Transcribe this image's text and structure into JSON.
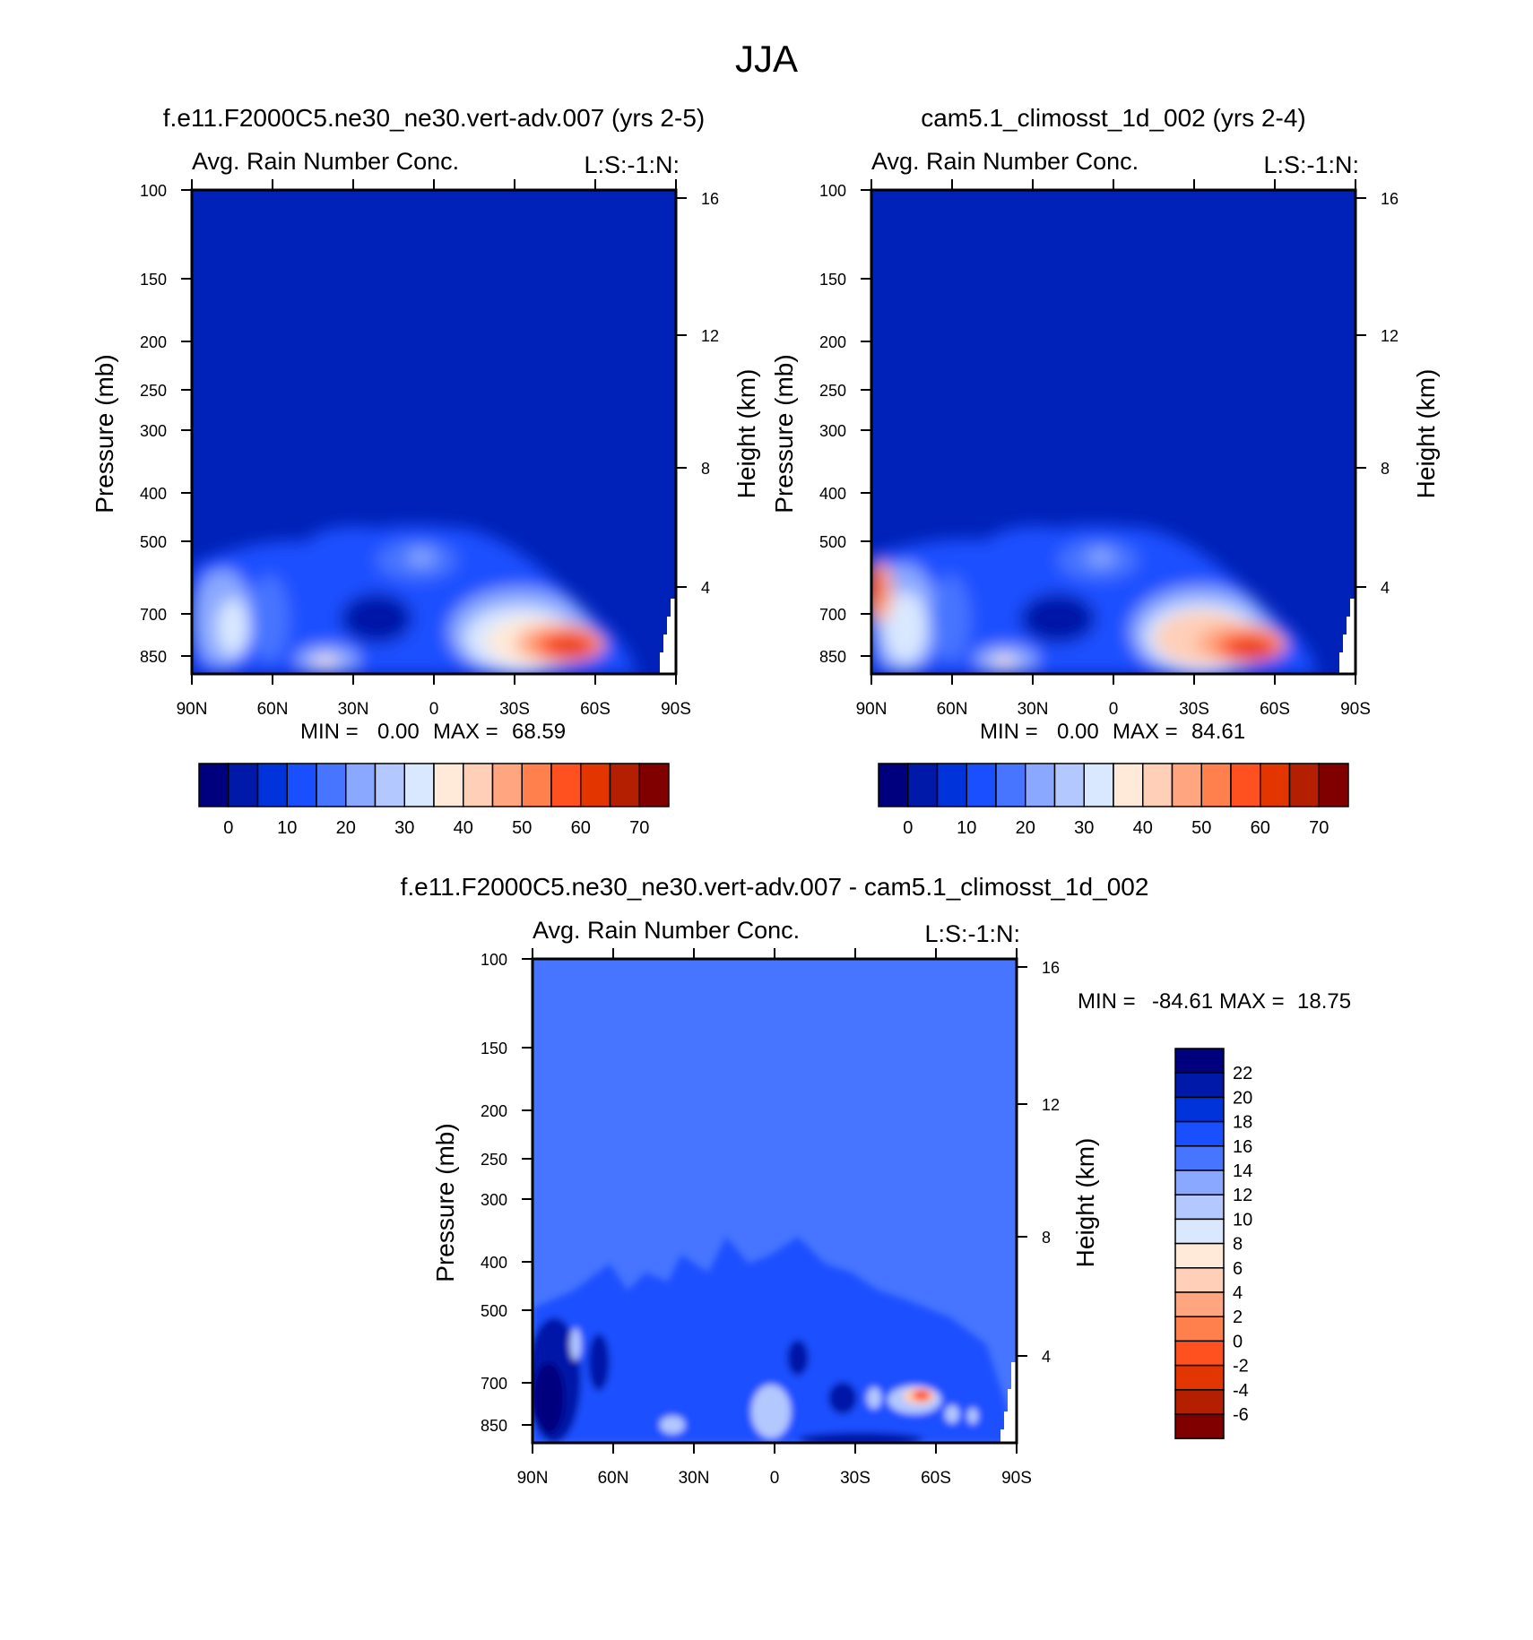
{
  "figure": {
    "title": "JJA",
    "palette_colors": [
      "#00007f",
      "#0019a8",
      "#0033d9",
      "#1a4fff",
      "#4775ff",
      "#8aa8ff",
      "#b3c8ff",
      "#d9e8ff",
      "#ffead9",
      "#ffcfb8",
      "#ffa680",
      "#ff7f4d",
      "#ff5020",
      "#e33500",
      "#b31f00",
      "#800000"
    ],
    "background_fill_color": "#0022b8"
  },
  "panels": [
    {
      "title": "f.e11.F2000C5.ne30_ne30.vert-adv.007 (yrs 2-5)",
      "subtitle_left": "Avg. Rain Number Conc.",
      "subtitle_right": "L:S:-1:N:",
      "ylabel": "Pressure (mb)",
      "ylabel_right": "Height (km)",
      "min_label": "MIN =",
      "min_value": "0.00",
      "max_label": "MAX =",
      "max_value": "68.59"
    },
    {
      "title": "cam5.1_climosst_1d_002 (yrs 2-4)",
      "subtitle_left": "Avg. Rain Number Conc.",
      "subtitle_right": "L:S:-1:N:",
      "ylabel": "Pressure (mb)",
      "ylabel_right": "Height (km)",
      "min_label": "MIN =",
      "min_value": "0.00",
      "max_label": "MAX =",
      "max_value": "84.61"
    },
    {
      "title": "f.e11.F2000C5.ne30_ne30.vert-adv.007 - cam5.1_climosst_1d_002",
      "subtitle_left": "Avg. Rain Number Conc.",
      "subtitle_right": "L:S:-1:N:",
      "ylabel": "Pressure (mb)",
      "ylabel_right": "Height (km)",
      "min_label": "MIN =",
      "min_value": "-84.61",
      "max_label": "MAX =",
      "max_value": "18.75"
    }
  ],
  "chart_data": [
    {
      "type": "heatmap",
      "title": "f.e11.F2000C5.ne30_ne30.vert-adv.007 (yrs 2-5)",
      "variable": "Avg. Rain Number Conc.",
      "ylabel": "Pressure (mb)",
      "ylabel_right": "Height (km)",
      "x_ticks": [
        "90N",
        "60N",
        "30N",
        "0",
        "30S",
        "60S",
        "90S"
      ],
      "y_ticks": [
        100,
        150,
        200,
        250,
        300,
        400,
        500,
        700,
        850
      ],
      "y_scale": "log",
      "y_right_ticks": [
        16,
        12,
        8,
        4
      ],
      "min": 0.0,
      "max": 68.59,
      "colorbar_labels": [
        0,
        10,
        20,
        30,
        40,
        50,
        60,
        70
      ],
      "colorbar_orientation": "horizontal",
      "features": [
        {
          "lat": -45,
          "pressure": 830,
          "value": 65
        },
        {
          "lat": -36,
          "pressure": 800,
          "value": 40
        },
        {
          "lat": 40,
          "pressure": 850,
          "value": 35
        },
        {
          "lat": 75,
          "pressure": 700,
          "value": 25
        },
        {
          "lat": 10,
          "pressure": 550,
          "value": 20
        }
      ]
    },
    {
      "type": "heatmap",
      "title": "cam5.1_climosst_1d_002 (yrs 2-4)",
      "variable": "Avg. Rain Number Conc.",
      "ylabel": "Pressure (mb)",
      "ylabel_right": "Height (km)",
      "x_ticks": [
        "90N",
        "60N",
        "30N",
        "0",
        "30S",
        "60S",
        "90S"
      ],
      "y_ticks": [
        100,
        150,
        200,
        250,
        300,
        400,
        500,
        700,
        850
      ],
      "y_scale": "log",
      "y_right_ticks": [
        16,
        12,
        8,
        4
      ],
      "min": 0.0,
      "max": 84.61,
      "colorbar_labels": [
        0,
        10,
        20,
        30,
        40,
        50,
        60,
        70
      ],
      "colorbar_orientation": "horizontal",
      "features": [
        {
          "lat": -45,
          "pressure": 830,
          "value": 75
        },
        {
          "lat": -30,
          "pressure": 780,
          "value": 45
        },
        {
          "lat": 88,
          "pressure": 650,
          "value": 55
        },
        {
          "lat": 40,
          "pressure": 850,
          "value": 38
        },
        {
          "lat": 75,
          "pressure": 720,
          "value": 30
        }
      ]
    },
    {
      "type": "heatmap",
      "title": "f.e11.F2000C5.ne30_ne30.vert-adv.007 - cam5.1_climosst_1d_002",
      "variable": "Avg. Rain Number Conc.",
      "ylabel": "Pressure (mb)",
      "ylabel_right": "Height (km)",
      "x_ticks": [
        "90N",
        "60N",
        "30N",
        "0",
        "30S",
        "60S",
        "90S"
      ],
      "y_ticks": [
        100,
        150,
        200,
        250,
        300,
        400,
        500,
        700,
        850
      ],
      "y_scale": "log",
      "y_right_ticks": [
        16,
        12,
        8,
        4
      ],
      "min": -84.61,
      "max": 18.75,
      "colorbar_labels": [
        22,
        20,
        18,
        16,
        14,
        12,
        10,
        8,
        6,
        4,
        2,
        0,
        -2,
        -4,
        -6
      ],
      "colorbar_orientation": "vertical",
      "features": [
        {
          "lat": -52,
          "pressure": 720,
          "value": 18
        },
        {
          "lat": -42,
          "pressure": 750,
          "value": 8
        },
        {
          "lat": 82,
          "pressure": 700,
          "value": -8
        },
        {
          "lat": 65,
          "pressure": 620,
          "value": -6
        }
      ]
    }
  ]
}
